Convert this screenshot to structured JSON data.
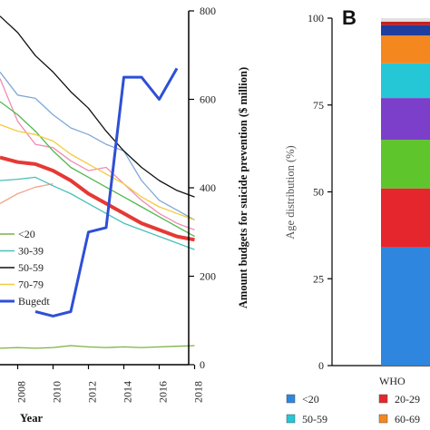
{
  "chart_data": [
    {
      "type": "line",
      "panel": "",
      "xlabel": "Year",
      "ylabel_right": "Amount budgets for suicide prevention ($ million)",
      "x_ticks": [
        "2008",
        "2010",
        "2012",
        "2014",
        "2016",
        "2018"
      ],
      "y_right_ticks": [
        "0",
        "200",
        "400",
        "600",
        "800"
      ],
      "ylim_right": [
        0,
        800
      ],
      "legend_position": "left",
      "series": [
        {
          "name": "<20",
          "color": "#7cb342",
          "axis": "hidden",
          "x": [
            2007,
            2008,
            2009,
            2010,
            2011,
            2012,
            2013,
            2014,
            2015,
            2016,
            2017,
            2018
          ],
          "y": [
            2.5,
            2.6,
            2.5,
            2.6,
            2.9,
            2.7,
            2.6,
            2.7,
            2.6,
            2.7,
            2.8,
            2.9
          ]
        },
        {
          "name": "",
          "color": "#f2a58c",
          "axis": "hidden",
          "x": [
            2007,
            2008,
            2009,
            2010
          ],
          "y": [
            24.5,
            26.0,
            27.0,
            27.5
          ]
        },
        {
          "name": "30-39",
          "color": "#49c0b8",
          "axis": "hidden",
          "x": [
            2007,
            2008,
            2009,
            2010,
            2011,
            2012,
            2013,
            2014,
            2015,
            2016,
            2017,
            2018
          ],
          "y": [
            28.0,
            28.2,
            28.5,
            27.2,
            26.0,
            24.5,
            23.0,
            21.5,
            20.5,
            19.5,
            18.5,
            17.5
          ]
        },
        {
          "name": "",
          "color": "#7fa9d8",
          "axis": "hidden",
          "x": [
            2007,
            2008,
            2009,
            2010,
            2011,
            2012,
            2013,
            2014,
            2015,
            2016,
            2017,
            2018
          ],
          "y": [
            44.5,
            41.0,
            40.5,
            38.0,
            36.0,
            35.0,
            33.5,
            32.5,
            28.0,
            25.0,
            23.5,
            22.0
          ]
        },
        {
          "name": "",
          "color": "#f08cb4",
          "axis": "hidden",
          "x": [
            2007,
            2008,
            2009,
            2010,
            2011,
            2012,
            2013,
            2014,
            2015,
            2016,
            2017,
            2018
          ],
          "y": [
            43.5,
            37.0,
            33.5,
            33.0,
            31.0,
            29.5,
            30.0,
            27.5,
            25.0,
            23.0,
            21.5,
            20.5
          ]
        },
        {
          "name": "",
          "color": "#52b84f",
          "axis": "hidden",
          "x": [
            2007,
            2008,
            2009,
            2010,
            2011,
            2012,
            2013,
            2014,
            2015,
            2016,
            2017,
            2018
          ],
          "y": [
            40.0,
            38.0,
            35.5,
            32.5,
            30.0,
            28.5,
            27.0,
            25.5,
            24.0,
            22.5,
            21.0,
            19.5
          ]
        },
        {
          "name": "50-59",
          "color": "#111111",
          "axis": "hidden",
          "x": [
            2007,
            2008,
            2009,
            2010,
            2011,
            2012,
            2013,
            2014,
            2015,
            2016,
            2017,
            2018
          ],
          "y": [
            53.0,
            50.5,
            47.0,
            44.5,
            41.5,
            39.0,
            35.5,
            32.5,
            30.0,
            28.0,
            26.5,
            25.5
          ]
        },
        {
          "name": "70-79",
          "color": "#f2cc3c",
          "axis": "hidden",
          "x": [
            2007,
            2008,
            2009,
            2010,
            2011,
            2012,
            2013,
            2014,
            2015,
            2016,
            2017,
            2018
          ],
          "y": [
            36.5,
            35.5,
            35.0,
            34.0,
            32.0,
            30.5,
            29.0,
            27.5,
            25.5,
            24.0,
            23.0,
            22.0
          ]
        },
        {
          "name": "",
          "color": "#e53935",
          "axis": "hidden",
          "width": 4,
          "x": [
            2007,
            2008,
            2009,
            2010,
            2011,
            2012,
            2013,
            2014,
            2015,
            2016,
            2017,
            2018
          ],
          "y": [
            31.5,
            30.8,
            30.5,
            29.5,
            28.0,
            26.0,
            24.5,
            23.0,
            21.5,
            20.5,
            19.5,
            19.0
          ]
        },
        {
          "name": "Bugedt",
          "color": "#2e4fd6",
          "axis": "right",
          "width": 3,
          "x": [
            2009,
            2010,
            2011,
            2012,
            2013,
            2014,
            2015,
            2016,
            2017
          ],
          "y": [
            120,
            110,
            120,
            300,
            310,
            650,
            650,
            600,
            670
          ]
        }
      ]
    },
    {
      "type": "bar",
      "stacked": true,
      "panel": "B",
      "categories": [
        "WHO"
      ],
      "ylabel": "Age distribution (%)",
      "ylim": [
        0,
        100
      ],
      "y_ticks": [
        "0",
        "25",
        "50",
        "75",
        "100"
      ],
      "legend_position": "bottom",
      "series": [
        {
          "name": "<20",
          "color": "#2e86de",
          "values": [
            34
          ]
        },
        {
          "name": "20-29",
          "color": "#e5262d",
          "values": [
            17
          ]
        },
        {
          "name": "",
          "color": "#5fc52d",
          "values": [
            14
          ]
        },
        {
          "name": "",
          "color": "#7c3fc9",
          "values": [
            12
          ]
        },
        {
          "name": "50-59",
          "color": "#25c6d6",
          "values": [
            10
          ]
        },
        {
          "name": "60-69",
          "color": "#f5871f",
          "values": [
            8
          ]
        },
        {
          "name": "",
          "color": "#1f3e9e",
          "values": [
            3
          ]
        },
        {
          "name": "",
          "color": "#c8201e",
          "values": [
            1
          ]
        },
        {
          "name": "",
          "color": "#e0e0e0",
          "values": [
            1
          ]
        }
      ]
    }
  ]
}
